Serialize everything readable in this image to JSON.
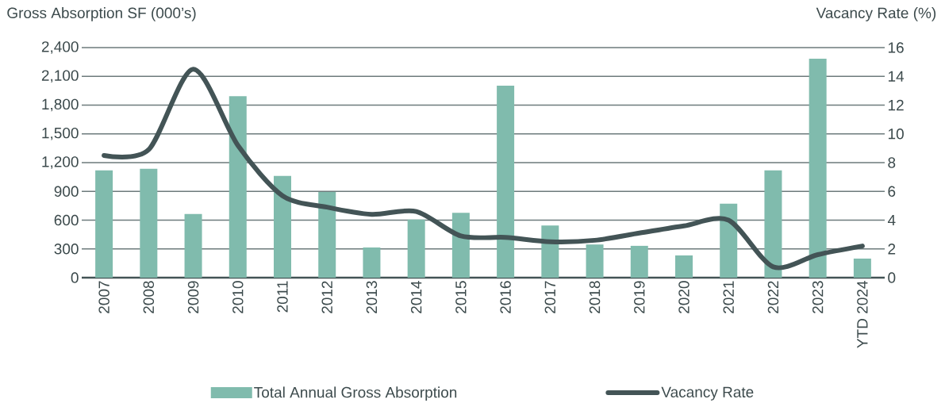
{
  "chart_data": {
    "type": "bar",
    "ylabel": "Gross Absorption SF (000’s)",
    "y2label": "Vacancy Rate (%)",
    "categories": [
      "2007",
      "2008",
      "2009",
      "2010",
      "2011",
      "2012",
      "2013",
      "2014",
      "2015",
      "2016",
      "2017",
      "2018",
      "2019",
      "2020",
      "2021",
      "2022",
      "2023",
      "YTD 2024"
    ],
    "series": [
      {
        "name": "Total Annual Gross Absorption",
        "color": "#80bbad",
        "values": [
          1120,
          1136,
          664,
          1894,
          1062,
          893,
          315,
          606,
          677,
          2002,
          545,
          346,
          332,
          232,
          771,
          1120,
          2284,
          199
        ]
      },
      {
        "name": "Vacancy Rate",
        "type": "line",
        "axis": "y2",
        "color": "#435456",
        "values": [
          8.5,
          8.9,
          14.5,
          9.2,
          5.7,
          4.9,
          4.4,
          4.6,
          2.9,
          2.8,
          2.5,
          2.6,
          3.1,
          3.6,
          4.0,
          0.75,
          1.6,
          2.2
        ]
      }
    ],
    "ylim": [
      0,
      2400
    ],
    "yticks": [
      0,
      300,
      600,
      900,
      {
        "value": 1200,
        "label": "1,200"
      },
      {
        "value": 1500,
        "label": "1,500"
      },
      {
        "value": 1800,
        "label": "1,800"
      },
      {
        "value": 2100,
        "label": "2,100"
      },
      {
        "value": 2400,
        "label": "2,400"
      }
    ],
    "y2lim": [
      0,
      16
    ],
    "y2ticks": [
      0,
      2,
      4,
      6,
      8,
      10,
      12,
      14,
      16
    ],
    "grid": "y",
    "legend": "bottom"
  }
}
